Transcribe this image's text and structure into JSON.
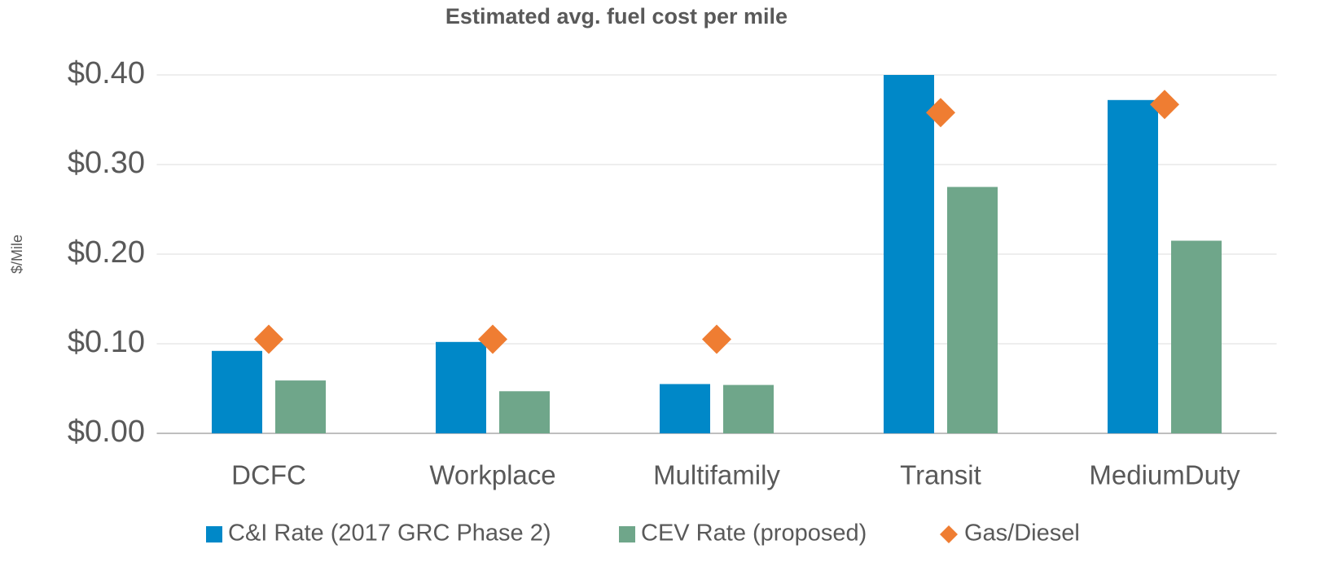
{
  "chart_data": {
    "type": "bar",
    "title": "Estimated avg. fuel cost per mile",
    "y_label": "$/Mile",
    "categories": [
      "DCFC",
      "Workplace",
      "Multifamily",
      "Transit",
      "MediumDuty"
    ],
    "series": [
      {
        "name": "C&I Rate (2017 GRC Phase 2)",
        "color": "#0088c8",
        "marker": "bar",
        "values": [
          0.092,
          0.102,
          0.055,
          0.4,
          0.372
        ]
      },
      {
        "name": "CEV Rate (proposed)",
        "color": "#6fa68a",
        "marker": "bar",
        "values": [
          0.059,
          0.047,
          0.054,
          0.275,
          0.215
        ]
      },
      {
        "name": "Gas/Diesel",
        "color": "#ef7d32",
        "marker": "diamond",
        "values": [
          0.105,
          0.105,
          0.105,
          0.358,
          0.367
        ]
      }
    ],
    "ylim": [
      0,
      0.4
    ],
    "yticks": [
      {
        "value": 0,
        "label": "$0.00"
      },
      {
        "value": 0.1,
        "label": "$0.10"
      },
      {
        "value": 0.2,
        "label": "$0.20"
      },
      {
        "value": 0.3,
        "label": "$0.30"
      },
      {
        "value": 0.4,
        "label": "$0.40"
      }
    ],
    "grid": true,
    "legend": "bottom"
  }
}
